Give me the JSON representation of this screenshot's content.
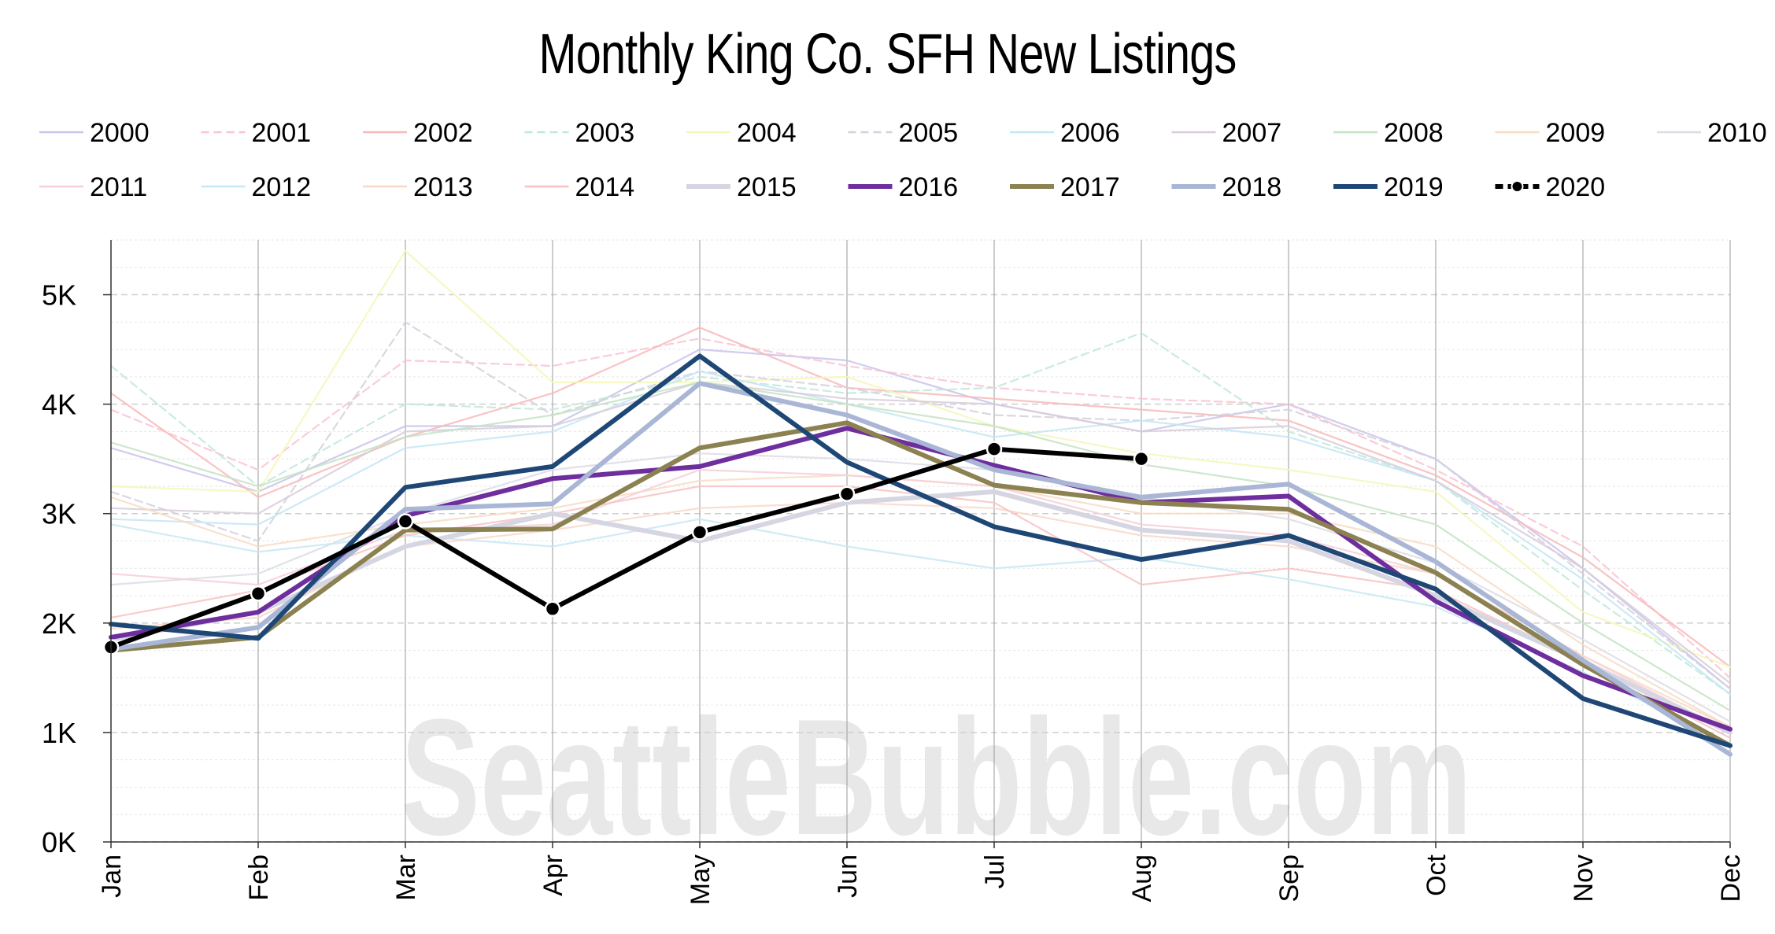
{
  "chart_data": {
    "type": "line",
    "title": "Monthly King Co. SFH New Listings",
    "watermark": "SeattleBubble.com",
    "categories": [
      "Jan",
      "Feb",
      "Mar",
      "Apr",
      "May",
      "Jun",
      "Jul",
      "Aug",
      "Sep",
      "Oct",
      "Nov",
      "Dec"
    ],
    "y_ticks": [
      "0K",
      "1K",
      "2K",
      "3K",
      "4K",
      "5K"
    ],
    "ylim": [
      0,
      5500
    ],
    "grid": true,
    "legend_position": "top",
    "series": [
      {
        "name": "2000",
        "color": "#c9c3ea",
        "dash": "solid",
        "values": [
          3600,
          3200,
          3800,
          3800,
          4500,
          4400,
          4000,
          3750,
          4000,
          3500,
          2500,
          1400
        ]
      },
      {
        "name": "2001",
        "color": "#f9c3d4",
        "dash": "dashed",
        "values": [
          3950,
          3400,
          4400,
          4350,
          4600,
          4350,
          4150,
          4050,
          4000,
          3400,
          2700,
          1500
        ]
      },
      {
        "name": "2002",
        "color": "#f8b9b9",
        "dash": "solid",
        "values": [
          4100,
          3150,
          3700,
          4100,
          4700,
          4150,
          4050,
          3950,
          3850,
          3350,
          2600,
          1600
        ]
      },
      {
        "name": "2003",
        "color": "#bfe8d9",
        "dash": "dashed",
        "values": [
          4350,
          3250,
          4000,
          3950,
          4250,
          4100,
          4150,
          4650,
          3750,
          3300,
          2300,
          1350
        ]
      },
      {
        "name": "2004",
        "color": "#f5f7b8",
        "dash": "solid",
        "values": [
          3250,
          3200,
          5400,
          4200,
          4200,
          4250,
          3800,
          3550,
          3400,
          3200,
          2100,
          1600
        ]
      },
      {
        "name": "2005",
        "color": "#d5d0dc",
        "dash": "dashed",
        "values": [
          3200,
          2750,
          4750,
          3900,
          4300,
          4150,
          3900,
          3850,
          3950,
          3500,
          2450,
          1400
        ]
      },
      {
        "name": "2006",
        "color": "#c3e6f5",
        "dash": "solid",
        "values": [
          2950,
          2900,
          3600,
          3750,
          4300,
          4000,
          3700,
          3850,
          3700,
          3300,
          2400,
          1350
        ]
      },
      {
        "name": "2007",
        "color": "#d7ccd9",
        "dash": "solid",
        "values": [
          3050,
          3000,
          3750,
          3800,
          4200,
          4050,
          4000,
          3750,
          3800,
          3300,
          2500,
          1450
        ]
      },
      {
        "name": "2008",
        "color": "#c4e3c4",
        "dash": "solid",
        "values": [
          3650,
          3250,
          3700,
          3900,
          4200,
          4000,
          3800,
          3450,
          3250,
          2900,
          2000,
          1200
        ]
      },
      {
        "name": "2009",
        "color": "#f7dcc4",
        "dash": "solid",
        "values": [
          3150,
          2700,
          2900,
          3050,
          3300,
          3350,
          3250,
          3000,
          3000,
          2700,
          1800,
          1050
        ]
      },
      {
        "name": "2010",
        "color": "#dcdce6",
        "dash": "solid",
        "values": [
          2350,
          2450,
          3000,
          3400,
          3550,
          3500,
          3400,
          3150,
          2950,
          2550,
          1850,
          1100
        ]
      },
      {
        "name": "2011",
        "color": "#f6cfd8",
        "dash": "solid",
        "values": [
          2450,
          2350,
          2850,
          2900,
          3400,
          3350,
          3250,
          2900,
          2800,
          2450,
          1700,
          1000
        ]
      },
      {
        "name": "2012",
        "color": "#c7e8f5",
        "dash": "solid",
        "values": [
          2900,
          2650,
          2800,
          2700,
          2950,
          2700,
          2500,
          2600,
          2400,
          2150,
          1550,
          900
        ]
      },
      {
        "name": "2013",
        "color": "#f8d8c8",
        "dash": "solid",
        "values": [
          1950,
          2050,
          2700,
          2850,
          3050,
          3100,
          3050,
          2800,
          2700,
          2450,
          1700,
          1050
        ]
      },
      {
        "name": "2014",
        "color": "#f8c2c2",
        "dash": "solid",
        "values": [
          2050,
          2300,
          2800,
          3000,
          3250,
          3250,
          3100,
          2350,
          2500,
          2300,
          1650,
          950
        ]
      },
      {
        "name": "2015",
        "color": "#d6d6e3",
        "dash": "solid",
        "values": [
          1850,
          2100,
          2700,
          3000,
          2750,
          3100,
          3200,
          2850,
          2750,
          2250,
          1650,
          1000
        ]
      },
      {
        "name": "2016",
        "color": "#6e2e9e",
        "dash": "solid",
        "values": [
          1870,
          2100,
          2980,
          3320,
          3430,
          3780,
          3440,
          3100,
          3160,
          2200,
          1520,
          1030
        ]
      },
      {
        "name": "2017",
        "color": "#8c8151",
        "dash": "solid",
        "values": [
          1750,
          1870,
          2850,
          2860,
          3600,
          3830,
          3260,
          3100,
          3040,
          2460,
          1620,
          880
        ]
      },
      {
        "name": "2018",
        "color": "#a9b6d5",
        "dash": "solid",
        "values": [
          1760,
          1960,
          3040,
          3090,
          4190,
          3900,
          3400,
          3150,
          3270,
          2560,
          1660,
          800
        ]
      },
      {
        "name": "2019",
        "color": "#1f4776",
        "dash": "solid",
        "values": [
          1990,
          1860,
          3240,
          3430,
          4440,
          3470,
          2880,
          2580,
          2800,
          2310,
          1310,
          880
        ]
      },
      {
        "name": "2020",
        "color": "#000000",
        "dash": "dashed-marker",
        "values": [
          1780,
          2270,
          2930,
          2130,
          2830,
          3180,
          3590,
          3500,
          null,
          null,
          null,
          null
        ]
      }
    ]
  }
}
